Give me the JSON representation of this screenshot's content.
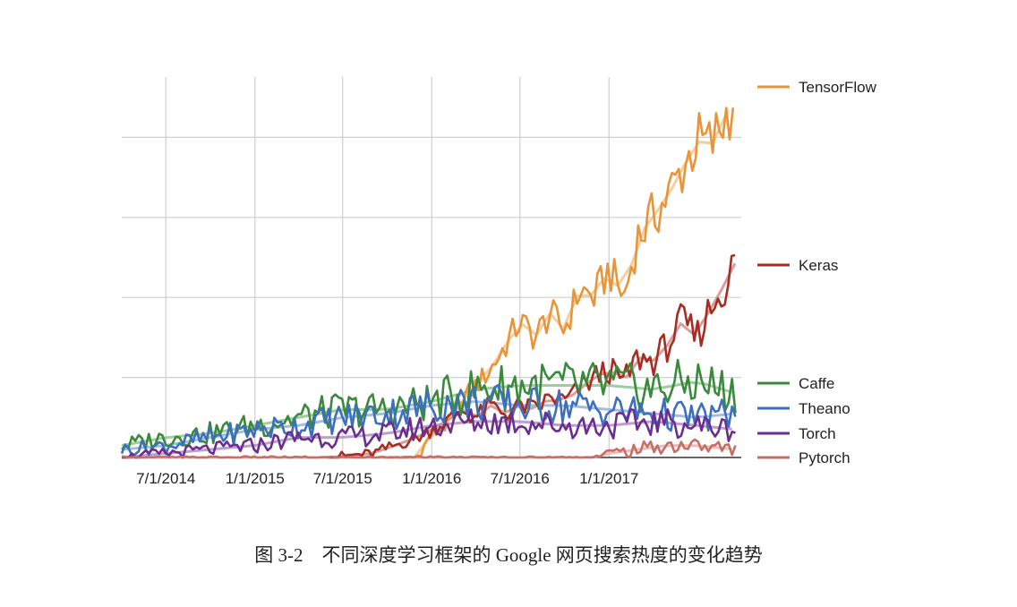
{
  "caption": "图 3-2　不同深度学习框架的 Google 网页搜索热度的变化趋势",
  "chart_data": {
    "type": "line",
    "title": "",
    "xlabel": "",
    "ylabel": "",
    "x_ticks": [
      {
        "label": "7/1/2014",
        "date": "2014-07-01"
      },
      {
        "label": "1/1/2015",
        "date": "2015-01-01"
      },
      {
        "label": "7/1/2015",
        "date": "2015-07-01"
      },
      {
        "label": "1/1/2016",
        "date": "2016-01-01"
      },
      {
        "label": "7/1/2016",
        "date": "2016-07-01"
      },
      {
        "label": "1/1/2017",
        "date": "2017-01-01"
      }
    ],
    "xlim": [
      "2014-04-01",
      "2017-10-01"
    ],
    "ylim": [
      0,
      100
    ],
    "y_ticks": [
      0,
      20,
      40,
      60,
      80
    ],
    "y_tick_labels_shown": false,
    "grid": true,
    "legend_position": "right",
    "trend_lines": true,
    "series": [
      {
        "name": "TensorFlow",
        "color": "#e8953a",
        "trend_color": "#f3c58c",
        "x": [
          "2015-10-01",
          "2015-12-01",
          "2016-01-01",
          "2016-02-01",
          "2016-03-01",
          "2016-04-01",
          "2016-05-01",
          "2016-06-01",
          "2016-07-01",
          "2016-08-01",
          "2016-09-01",
          "2016-10-01",
          "2016-11-01",
          "2016-12-01",
          "2017-01-01",
          "2017-02-01",
          "2017-03-01",
          "2017-04-01",
          "2017-05-01",
          "2017-06-01",
          "2017-07-01",
          "2017-08-01",
          "2017-09-01",
          "2017-09-20"
        ],
        "values": [
          0,
          0,
          6,
          8,
          14,
          18,
          22,
          28,
          34,
          30,
          36,
          32,
          42,
          40,
          47,
          40,
          55,
          60,
          65,
          72,
          79,
          78,
          86,
          92
        ]
      },
      {
        "name": "Keras",
        "color": "#a62d24",
        "trend_color": "#d48d8a",
        "x": [
          "2015-06-01",
          "2015-09-01",
          "2015-12-01",
          "2016-01-01",
          "2016-02-01",
          "2016-03-01",
          "2016-04-01",
          "2016-05-01",
          "2016-06-01",
          "2016-07-01",
          "2016-08-01",
          "2016-09-01",
          "2016-10-01",
          "2016-11-01",
          "2016-12-01",
          "2017-01-01",
          "2017-02-01",
          "2017-03-01",
          "2017-04-01",
          "2017-05-01",
          "2017-06-01",
          "2017-07-01",
          "2017-08-01",
          "2017-09-01",
          "2017-09-20"
        ],
        "values": [
          0,
          1,
          5,
          7,
          9,
          12,
          10,
          13,
          11,
          13,
          12,
          15,
          14,
          17,
          20,
          22,
          19,
          25,
          24,
          28,
          34,
          30,
          38,
          44,
          49
        ]
      },
      {
        "name": "Caffe",
        "color": "#3a8a3c",
        "trend_color": "#8fc48f",
        "x": [
          "2014-04-01",
          "2014-07-01",
          "2014-10-01",
          "2015-01-01",
          "2015-04-01",
          "2015-07-01",
          "2015-10-01",
          "2016-01-01",
          "2016-04-01",
          "2016-07-01",
          "2016-10-01",
          "2017-01-01",
          "2017-04-01",
          "2017-07-01",
          "2017-09-20"
        ],
        "values": [
          3,
          5,
          6,
          8,
          10,
          12,
          12,
          14,
          17,
          18,
          18,
          18,
          17,
          19,
          16
        ]
      },
      {
        "name": "Theano",
        "color": "#3d6fbf",
        "trend_color": "#93b0de",
        "x": [
          "2014-04-01",
          "2014-07-01",
          "2014-10-01",
          "2015-01-01",
          "2015-04-01",
          "2015-07-01",
          "2015-10-01",
          "2016-01-01",
          "2016-04-01",
          "2016-07-01",
          "2016-10-01",
          "2017-01-01",
          "2017-04-01",
          "2017-07-01",
          "2017-09-20"
        ],
        "values": [
          2,
          3,
          5,
          7,
          8,
          10,
          11,
          13,
          14,
          13,
          13,
          12,
          11,
          10,
          11
        ]
      },
      {
        "name": "Torch",
        "color": "#6a2e8e",
        "trend_color": "#b38dca",
        "x": [
          "2014-04-01",
          "2014-07-01",
          "2014-10-01",
          "2015-01-01",
          "2015-04-01",
          "2015-07-01",
          "2015-10-01",
          "2016-01-01",
          "2016-04-01",
          "2016-07-01",
          "2016-10-01",
          "2017-01-01",
          "2017-04-01",
          "2017-07-01",
          "2017-09-20"
        ],
        "values": [
          0,
          1,
          2,
          3,
          5,
          5,
          6,
          8,
          9,
          9,
          8,
          8,
          9,
          8,
          7
        ]
      },
      {
        "name": "Pytorch",
        "color": "#c96e66",
        "trend_color": "#e6b3ae",
        "x": [
          "2014-04-01",
          "2016-12-01",
          "2017-01-01",
          "2017-03-01",
          "2017-05-01",
          "2017-07-01",
          "2017-09-20"
        ],
        "values": [
          0,
          0,
          1,
          2,
          3,
          3,
          2
        ]
      }
    ]
  }
}
